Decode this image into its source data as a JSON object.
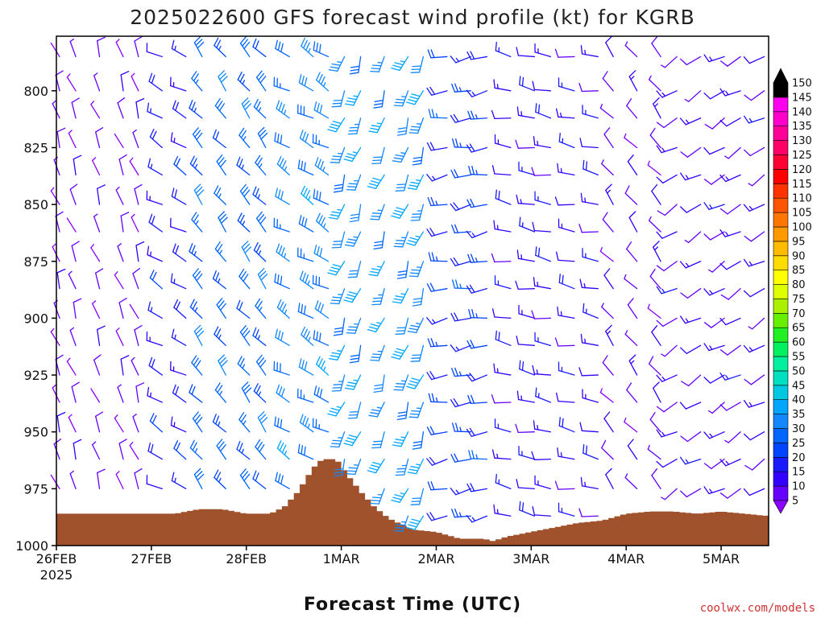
{
  "chart_data": {
    "type": "wind-profile",
    "title": "2025022600 GFS forecast wind profile (kt) for KGRB",
    "xlabel": "Forecast Time (UTC)",
    "credit": "coolwx.com/models",
    "x_ticks": [
      {
        "label": "26FEB",
        "sub": "2025",
        "day": 0
      },
      {
        "label": "27FEB",
        "sub": "",
        "day": 1
      },
      {
        "label": "28FEB",
        "sub": "",
        "day": 2
      },
      {
        "label": "1MAR",
        "sub": "",
        "day": 3
      },
      {
        "label": "2MAR",
        "sub": "",
        "day": 4
      },
      {
        "label": "3MAR",
        "sub": "",
        "day": 5
      },
      {
        "label": "4MAR",
        "sub": "",
        "day": 6
      },
      {
        "label": "5MAR",
        "sub": "",
        "day": 7
      }
    ],
    "x_range_days": [
      0,
      7.5
    ],
    "y_ticks": [
      {
        "label": "800",
        "value": 800
      },
      {
        "label": "825",
        "value": 825
      },
      {
        "label": "850",
        "value": 850
      },
      {
        "label": "875",
        "value": 875
      },
      {
        "label": "900",
        "value": 900
      },
      {
        "label": "925",
        "value": 925
      },
      {
        "label": "950",
        "value": 950
      },
      {
        "label": "975",
        "value": 975
      },
      {
        "label": "1000",
        "value": 1000
      }
    ],
    "y_range_hpa": [
      1000,
      776
    ],
    "colorbar": {
      "labels": [
        "5",
        "10",
        "15",
        "20",
        "25",
        "30",
        "35",
        "40",
        "45",
        "50",
        "55",
        "60",
        "65",
        "70",
        "75",
        "80",
        "85",
        "90",
        "95",
        "100",
        "105",
        "110",
        "115",
        "120",
        "125",
        "130",
        "135",
        "140",
        "145",
        "150"
      ],
      "colors": [
        "#8a00ff",
        "#6600ff",
        "#3300ff",
        "#1a1aff",
        "#0044ff",
        "#0066ff",
        "#1188ff",
        "#00a6ff",
        "#00c8e0",
        "#00e0c0",
        "#00f0a0",
        "#00f060",
        "#22f022",
        "#66f000",
        "#aaf000",
        "#ddff00",
        "#ffff00",
        "#ffdd00",
        "#ffbb00",
        "#ff9900",
        "#ff7700",
        "#ff5500",
        "#ff3300",
        "#ff0000",
        "#ff0033",
        "#ff0066",
        "#ff0099",
        "#ff00cc",
        "#ff00ee",
        "#000000"
      ]
    },
    "terrain_surface_hpa": [
      {
        "day": 0.0,
        "hpa": 986
      },
      {
        "day": 0.25,
        "hpa": 986
      },
      {
        "day": 0.5,
        "hpa": 986
      },
      {
        "day": 0.75,
        "hpa": 986
      },
      {
        "day": 1.0,
        "hpa": 986
      },
      {
        "day": 1.25,
        "hpa": 986
      },
      {
        "day": 1.5,
        "hpa": 984
      },
      {
        "day": 1.75,
        "hpa": 984
      },
      {
        "day": 2.0,
        "hpa": 986
      },
      {
        "day": 2.25,
        "hpa": 986
      },
      {
        "day": 2.4,
        "hpa": 983
      },
      {
        "day": 2.55,
        "hpa": 976
      },
      {
        "day": 2.7,
        "hpa": 966
      },
      {
        "day": 2.8,
        "hpa": 962
      },
      {
        "day": 2.95,
        "hpa": 962
      },
      {
        "day": 3.05,
        "hpa": 968
      },
      {
        "day": 3.2,
        "hpa": 976
      },
      {
        "day": 3.35,
        "hpa": 983
      },
      {
        "day": 3.5,
        "hpa": 988
      },
      {
        "day": 3.75,
        "hpa": 993
      },
      {
        "day": 4.0,
        "hpa": 994
      },
      {
        "day": 4.25,
        "hpa": 997
      },
      {
        "day": 4.5,
        "hpa": 997
      },
      {
        "day": 4.6,
        "hpa": 998
      },
      {
        "day": 4.75,
        "hpa": 996
      },
      {
        "day": 5.0,
        "hpa": 994
      },
      {
        "day": 5.25,
        "hpa": 992
      },
      {
        "day": 5.5,
        "hpa": 990
      },
      {
        "day": 5.75,
        "hpa": 989
      },
      {
        "day": 6.0,
        "hpa": 986
      },
      {
        "day": 6.25,
        "hpa": 985
      },
      {
        "day": 6.5,
        "hpa": 985
      },
      {
        "day": 6.75,
        "hpa": 986
      },
      {
        "day": 7.0,
        "hpa": 985
      },
      {
        "day": 7.25,
        "hpa": 986
      },
      {
        "day": 7.5,
        "hpa": 987
      }
    ],
    "terrain_color": "#a0522d",
    "wind_levels_hpa": [
      785,
      800,
      812,
      825,
      837,
      850,
      862,
      875,
      887,
      900,
      912,
      925,
      937,
      950,
      962,
      975,
      987
    ],
    "wind_columns_days": [
      0.0,
      0.17,
      0.42,
      0.67,
      0.83,
      1.08,
      1.33,
      1.5,
      1.75,
      2.0,
      2.17,
      2.42,
      2.67,
      2.83,
      3.0,
      3.17,
      3.42,
      3.67,
      3.83,
      4.08,
      4.33,
      4.5,
      4.75,
      5.0,
      5.17,
      5.42,
      5.67,
      5.83,
      6.08,
      6.33,
      6.5,
      6.75,
      7.0,
      7.17,
      7.42
    ],
    "wind_segments": [
      {
        "day_from": 0.0,
        "day_to": 1.0,
        "dir": 340,
        "speed": 8
      },
      {
        "day_from": 1.0,
        "day_to": 1.5,
        "dir": 300,
        "speed": 18
      },
      {
        "day_from": 1.5,
        "day_to": 2.25,
        "dir": 320,
        "speed": 28
      },
      {
        "day_from": 2.25,
        "day_to": 2.9,
        "dir": 300,
        "speed": 32
      },
      {
        "day_from": 2.9,
        "day_to": 3.9,
        "dir": 200,
        "speed": 35
      },
      {
        "day_from": 3.9,
        "day_to": 4.75,
        "dir": 260,
        "speed": 22
      },
      {
        "day_from": 4.75,
        "day_to": 5.75,
        "dir": 280,
        "speed": 15
      },
      {
        "day_from": 5.75,
        "day_to": 6.5,
        "dir": 320,
        "speed": 10
      },
      {
        "day_from": 6.5,
        "day_to": 7.5,
        "dir": 240,
        "speed": 12
      }
    ]
  }
}
